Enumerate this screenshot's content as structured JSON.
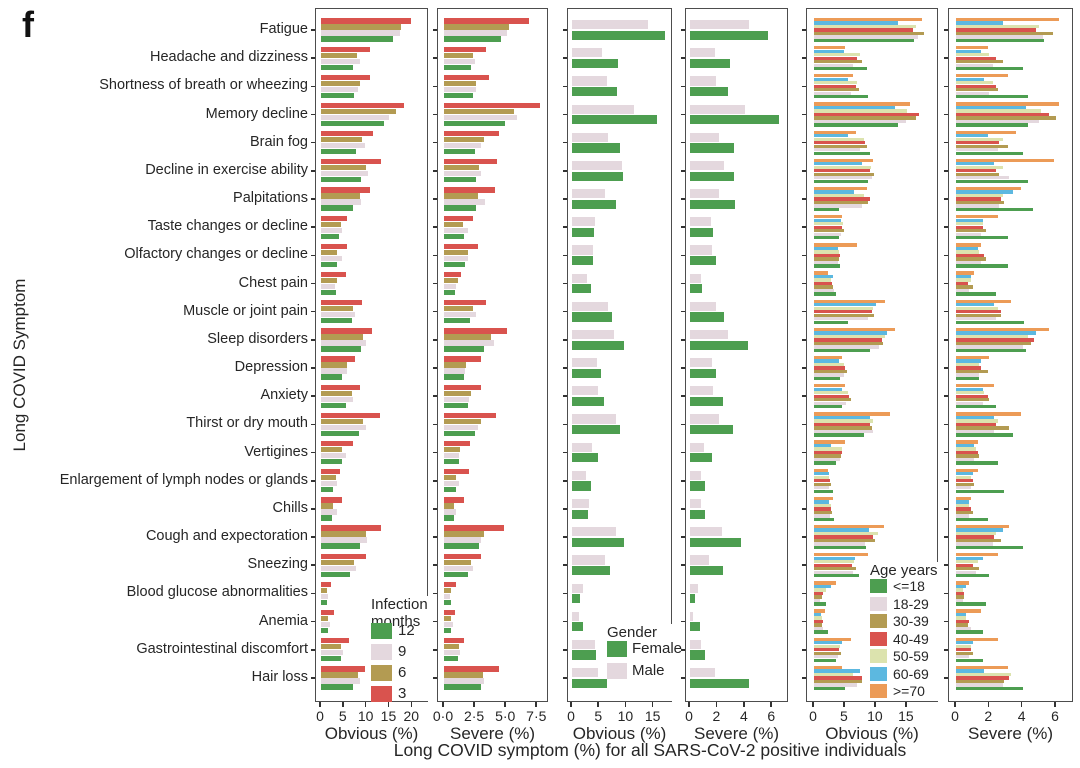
{
  "figure_label": "f",
  "y_axis_title": "Long COVID Symptom",
  "x_overall_title": "Long COVID symptom (%) for all SARS-CoV-2 positive individuals",
  "colors": {
    "green": "#4d9e50",
    "pink": "#e4d8de",
    "khaki": "#b39b52",
    "red": "#d9534e",
    "pale_green": "#dce3ae",
    "blue": "#5cb8e0",
    "orange": "#ec9b57",
    "panel_border": "#4d4d4d",
    "text": "#262626"
  },
  "chart_data": {
    "type": "bar",
    "orientation": "horizontal",
    "categories": [
      "Fatigue",
      "Headache and dizziness",
      "Shortness of breath or wheezing",
      "Memory decline",
      "Brain fog",
      "Decline in exercise ability",
      "Palpitations",
      "Taste changes or decline",
      "Olfactory changes or decline",
      "Chest pain",
      "Muscle or joint pain",
      "Sleep disorders",
      "Depression",
      "Anxiety",
      "Thirst or dry mouth",
      "Vertigines",
      "Enlargement of lymph nodes or glands",
      "Chills",
      "Cough and expectoration",
      "Sneezing",
      "Blood glucose abnormalities",
      "Anemia",
      "Gastrointestinal discomfort",
      "Hair loss"
    ],
    "panels": [
      {
        "xlabel": "Obvious (%)",
        "tick_labels": [
          "0",
          "5",
          "10",
          "15",
          "20"
        ],
        "tick_values": [
          0,
          5,
          10,
          15,
          20
        ],
        "xmax": 23,
        "legend": {
          "title": "Infection\nmonths",
          "items": [
            {
              "label": "12",
              "color": "#4d9e50"
            },
            {
              "label": "9",
              "color": "#e4d8de"
            },
            {
              "label": "6",
              "color": "#b39b52"
            },
            {
              "label": "3",
              "color": "#d9534e"
            }
          ]
        },
        "series": [
          {
            "name": "3",
            "color": "#d9534e",
            "values": [
              19.7,
              10.7,
              10.7,
              18.2,
              11.4,
              13.1,
              10.7,
              5.6,
              5.8,
              5.4,
              9.0,
              11.2,
              7.5,
              8.6,
              12.9,
              6.9,
              4.1,
              4.5,
              13.1,
              9.9,
              2.1,
              2.8,
              6.2,
              9.7
            ]
          },
          {
            "name": "6",
            "color": "#b39b52",
            "values": [
              17.6,
              7.8,
              8.6,
              16.5,
              9.0,
              9.9,
              8.6,
              4.3,
              3.6,
              3.4,
              7.1,
              9.2,
              5.6,
              6.7,
              9.2,
              4.5,
              3.2,
              2.6,
              9.9,
              7.3,
              1.3,
              1.5,
              4.3,
              8.2
            ]
          },
          {
            "name": "9",
            "color": "#e4d8de",
            "values": [
              17.4,
              8.5,
              8.2,
              15.0,
              9.7,
              10.3,
              8.8,
              4.7,
              4.5,
              3.0,
              7.5,
              9.9,
              5.6,
              6.9,
              9.9,
              5.4,
              3.4,
              3.4,
              10.1,
              7.7,
              1.5,
              1.9,
              4.9,
              8.6
            ]
          },
          {
            "name": "12",
            "color": "#4d9e50",
            "values": [
              15.7,
              6.9,
              7.3,
              13.7,
              7.7,
              8.8,
              6.9,
              3.9,
              3.6,
              3.2,
              6.7,
              8.8,
              4.7,
              5.4,
              8.4,
              4.5,
              2.6,
              2.4,
              8.6,
              6.4,
              1.3,
              1.5,
              4.3,
              6.9
            ]
          }
        ]
      },
      {
        "xlabel": "Severe (%)",
        "tick_labels": [
          "0·0",
          "2·5",
          "5·0",
          "7·5"
        ],
        "tick_values": [
          0,
          2.5,
          5,
          7.5
        ],
        "xmax": 8.2,
        "series": [
          {
            "name": "3",
            "color": "#d9534e",
            "values": [
              6.8,
              3.4,
              3.6,
              7.7,
              4.4,
              4.3,
              4.1,
              2.3,
              2.7,
              1.4,
              3.4,
              5.1,
              3.0,
              3.0,
              4.2,
              2.1,
              2.0,
              1.6,
              4.8,
              3.0,
              1.0,
              0.9,
              1.6,
              4.4
            ]
          },
          {
            "name": "6",
            "color": "#b39b52",
            "values": [
              5.2,
              2.3,
              2.6,
              5.6,
              3.2,
              2.8,
              2.7,
              1.5,
              1.9,
              1.1,
              2.3,
              3.8,
              1.8,
              2.2,
              3.0,
              1.3,
              1.0,
              0.8,
              3.2,
              2.2,
              0.6,
              0.6,
              1.2,
              3.1
            ]
          },
          {
            "name": "9",
            "color": "#e4d8de",
            "values": [
              5.1,
              2.5,
              2.6,
              5.9,
              3.0,
              3.0,
              3.3,
              1.9,
              1.9,
              1.0,
              2.6,
              4.0,
              1.7,
              2.0,
              2.7,
              1.2,
              1.2,
              1.0,
              3.0,
              2.3,
              0.5,
              0.7,
              1.3,
              3.2
            ]
          },
          {
            "name": "12",
            "color": "#4d9e50",
            "values": [
              4.6,
              2.2,
              2.3,
              4.9,
              2.5,
              2.6,
              2.6,
              1.6,
              1.7,
              0.9,
              2.1,
              3.2,
              1.6,
              1.9,
              2.5,
              1.2,
              1.0,
              0.8,
              2.8,
              1.9,
              0.6,
              0.6,
              1.1,
              3.0
            ]
          }
        ]
      },
      {
        "xlabel": "Obvious (%)",
        "tick_labels": [
          "0",
          "5",
          "10",
          "15"
        ],
        "tick_values": [
          0,
          5,
          10,
          15
        ],
        "xmax": 18,
        "legend": {
          "title": "Gender",
          "items": [
            {
              "label": "Female",
              "color": "#4d9e50"
            },
            {
              "label": "Male",
              "color": "#e4d8de"
            }
          ]
        },
        "series": [
          {
            "name": "Male",
            "color": "#e4d8de",
            "values": [
              13.9,
              5.5,
              6.4,
              11.3,
              6.6,
              9.1,
              6.1,
              4.3,
              3.8,
              2.7,
              6.6,
              7.7,
              4.5,
              4.8,
              8.0,
              3.7,
              2.6,
              3.1,
              8.0,
              6.1,
              2.1,
              1.2,
              4.3,
              4.7
            ]
          },
          {
            "name": "Female",
            "color": "#4d9e50",
            "values": [
              17.1,
              8.4,
              8.2,
              15.7,
              8.9,
              9.3,
              8.0,
              4.1,
              3.9,
              3.4,
              7.3,
              9.5,
              5.4,
              5.9,
              8.9,
              4.8,
              3.4,
              3.0,
              9.5,
              7.0,
              1.4,
              2.1,
              4.4,
              8.9
            ]
          }
        ]
      },
      {
        "xlabel": "Severe (%)",
        "tick_labels": [
          "0",
          "2",
          "4",
          "6"
        ],
        "tick_values": [
          0,
          2,
          4,
          6
        ],
        "xmax": 7.0,
        "series": [
          {
            "name": "Male",
            "color": "#e4d8de",
            "values": [
              4.3,
              1.8,
              1.9,
              4.0,
              2.1,
              2.5,
              2.1,
              1.5,
              1.6,
              0.8,
              1.9,
              2.8,
              1.6,
              1.7,
              2.1,
              1.0,
              0.8,
              0.8,
              2.3,
              1.4,
              0.6,
              0.2,
              0.8,
              1.8
            ]
          },
          {
            "name": "Female",
            "color": "#4d9e50",
            "values": [
              5.7,
              2.9,
              2.8,
              6.5,
              3.2,
              3.2,
              3.3,
              1.7,
              1.9,
              0.9,
              2.5,
              4.2,
              1.9,
              2.4,
              3.1,
              1.6,
              1.1,
              1.1,
              3.7,
              2.4,
              0.4,
              0.7,
              1.1,
              4.3
            ]
          }
        ]
      },
      {
        "xlabel": "Obvious (%)",
        "tick_labels": [
          "0",
          "5",
          "10",
          "15"
        ],
        "tick_values": [
          0,
          5,
          10,
          15
        ],
        "xmax": 19.7,
        "legend": {
          "title": "Age years",
          "items": [
            {
              "label": "<=18",
              "color": "#4d9e50"
            },
            {
              "label": "18-29",
              "color": "#e4d8de"
            },
            {
              "label": "30-39",
              "color": "#b39b52"
            },
            {
              "label": "40-49",
              "color": "#d9534e"
            },
            {
              "label": "50-59",
              "color": "#dce3ae"
            },
            {
              "label": "60-69",
              "color": "#5cb8e0"
            },
            {
              "label": ">=70",
              "color": "#ec9b57"
            }
          ]
        },
        "series": [
          {
            "name": ">=70",
            "color": "#ec9b57",
            "values": [
              17.5,
              5.0,
              6.3,
              15.5,
              6.8,
              9.5,
              8.5,
              4.5,
              7.0,
              2.2,
              11.5,
              13.0,
              4.5,
              5.0,
              12.3,
              5.0,
              2.2,
              3.0,
              11.3,
              8.8,
              3.5,
              1.8,
              5.9,
              4.5
            ]
          },
          {
            "name": "60-69",
            "color": "#5cb8e0",
            "values": [
              13.5,
              4.8,
              5.5,
              13.0,
              5.5,
              7.8,
              6.5,
              4.3,
              3.8,
              3.0,
              10.0,
              11.8,
              4.0,
              4.5,
              9.1,
              2.8,
              2.4,
              2.5,
              8.9,
              6.6,
              2.8,
              1.2,
              4.5,
              7.5
            ]
          },
          {
            "name": "50-59",
            "color": "#dce3ae",
            "values": [
              16.5,
              7.5,
              7.0,
              15.0,
              8.0,
              9.2,
              8.0,
              4.7,
              4.0,
              2.8,
              9.5,
              11.5,
              4.8,
              5.5,
              9.5,
              4.5,
              2.5,
              2.8,
              10.3,
              6.4,
              2.0,
              1.3,
              4.2,
              6.3
            ]
          },
          {
            "name": "40-49",
            "color": "#d9534e",
            "values": [
              16.0,
              7.0,
              6.8,
              17.0,
              8.3,
              9.0,
              9.0,
              4.5,
              4.2,
              2.9,
              9.3,
              11.0,
              5.0,
              5.7,
              9.0,
              4.5,
              2.6,
              2.8,
              9.5,
              6.2,
              1.5,
              1.4,
              4.0,
              7.8
            ]
          },
          {
            "name": "30-39",
            "color": "#b39b52",
            "values": [
              17.8,
              7.7,
              7.2,
              16.5,
              8.5,
              9.7,
              8.7,
              4.8,
              4.0,
              3.0,
              9.7,
              11.2,
              5.3,
              6.0,
              9.3,
              4.4,
              2.7,
              2.9,
              9.8,
              6.8,
              1.3,
              1.3,
              4.3,
              7.7
            ]
          },
          {
            "name": "18-29",
            "color": "#e4d8de",
            "values": [
              16.8,
              6.3,
              6.0,
              14.8,
              7.5,
              9.3,
              7.8,
              4.3,
              3.8,
              3.2,
              8.8,
              10.5,
              4.8,
              5.2,
              9.5,
              4.2,
              2.5,
              2.6,
              8.3,
              6.3,
              1.0,
              1.5,
              3.9,
              6.9
            ]
          },
          {
            "name": "<=18",
            "color": "#4d9e50",
            "values": [
              16.2,
              8.5,
              8.7,
              13.5,
              9.0,
              8.8,
              4.0,
              4.0,
              4.2,
              3.5,
              5.5,
              9.0,
              4.2,
              4.5,
              8.0,
              3.5,
              3.1,
              3.2,
              8.4,
              7.2,
              1.9,
              2.2,
              3.6,
              5.0
            ]
          }
        ]
      },
      {
        "xlabel": "Severe (%)",
        "tick_labels": [
          "0",
          "2",
          "4",
          "6"
        ],
        "tick_values": [
          0,
          2,
          4,
          6
        ],
        "xmax": 6.9,
        "series": [
          {
            "name": ">=70",
            "color": "#ec9b57",
            "values": [
              6.2,
              1.9,
              3.1,
              6.2,
              3.6,
              5.9,
              3.9,
              2.5,
              1.5,
              1.1,
              3.3,
              5.6,
              2.0,
              2.3,
              3.9,
              1.3,
              1.3,
              0.9,
              3.2,
              2.5,
              0.8,
              1.5,
              2.5,
              3.1
            ]
          },
          {
            "name": "60-69",
            "color": "#5cb8e0",
            "values": [
              2.8,
              1.5,
              1.7,
              4.2,
              1.9,
              2.3,
              3.4,
              1.6,
              1.3,
              0.9,
              2.3,
              4.8,
              1.5,
              1.6,
              2.3,
              1.1,
              1.0,
              0.8,
              2.8,
              1.6,
              0.6,
              0.6,
              1.0,
              1.7
            ]
          },
          {
            "name": "50-59",
            "color": "#dce3ae",
            "values": [
              5.0,
              2.0,
              2.2,
              5.1,
              2.8,
              2.8,
              2.8,
              1.6,
              1.4,
              0.9,
              2.5,
              4.3,
              1.4,
              1.7,
              2.5,
              1.2,
              0.9,
              0.8,
              2.4,
              1.3,
              0.4,
              0.6,
              0.9,
              3.3
            ]
          },
          {
            "name": "40-49",
            "color": "#d9534e",
            "values": [
              4.8,
              2.4,
              2.4,
              5.6,
              2.6,
              2.4,
              2.7,
              1.6,
              1.7,
              0.7,
              2.7,
              4.7,
              1.5,
              1.9,
              2.4,
              1.3,
              1.0,
              0.9,
              2.3,
              1.0,
              0.5,
              0.8,
              0.9,
              3.2
            ]
          },
          {
            "name": "30-39",
            "color": "#b39b52",
            "values": [
              5.8,
              2.8,
              2.5,
              6.0,
              3.1,
              2.6,
              2.9,
              1.8,
              1.8,
              1.0,
              2.7,
              4.5,
              1.9,
              2.0,
              3.2,
              1.4,
              1.1,
              1.0,
              2.7,
              1.4,
              0.5,
              0.7,
              1.0,
              2.9
            ]
          },
          {
            "name": "18-29",
            "color": "#e4d8de",
            "values": [
              5.2,
              2.2,
              2.0,
              5.0,
              2.5,
              3.2,
              2.6,
              1.5,
              1.5,
              0.8,
              2.4,
              4.0,
              1.4,
              1.6,
              2.3,
              1.1,
              0.9,
              0.8,
              2.2,
              1.2,
              0.4,
              0.9,
              0.8,
              2.8
            ]
          },
          {
            "name": "<=18",
            "color": "#4d9e50",
            "values": [
              5.3,
              4.0,
              4.3,
              4.3,
              4.0,
              4.3,
              4.6,
              3.1,
              3.1,
              2.4,
              4.1,
              4.2,
              1.4,
              2.4,
              3.4,
              2.5,
              2.9,
              1.9,
              4.0,
              2.0,
              1.8,
              1.6,
              1.6,
              4.0
            ]
          }
        ]
      }
    ]
  }
}
